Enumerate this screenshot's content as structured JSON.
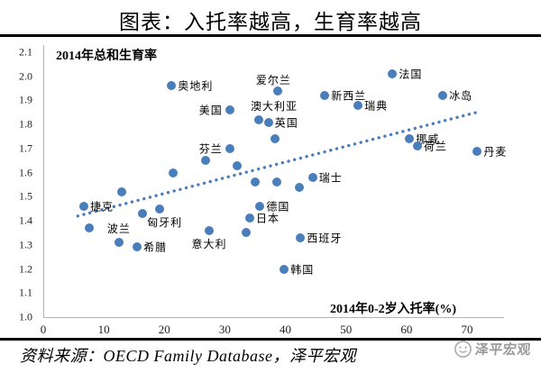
{
  "page_title": "图表：入托率越高，生育率越高",
  "chart_data": {
    "type": "scatter",
    "title": "图表：入托率越高，生育率越高",
    "ylabel": "2014年总和生育率",
    "xlabel": "2014年0-2岁入托率(%)",
    "xlim": [
      0,
      76
    ],
    "ylim": [
      1.0,
      2.1
    ],
    "x_ticks": [
      0,
      10,
      20,
      30,
      40,
      50,
      60,
      70
    ],
    "y_ticks": [
      2.1,
      2.0,
      1.9,
      1.8,
      1.7,
      1.6,
      1.5,
      1.4,
      1.3,
      1.2,
      1.1,
      1.0
    ],
    "grid": false,
    "legend": "none",
    "point_color": "#4A7EBB",
    "points": [
      {
        "label": "捷克",
        "x": 6.7,
        "y": 1.46,
        "label_pos": "right"
      },
      {
        "label": "波兰",
        "x": 12.5,
        "y": 1.31,
        "label_pos": "above"
      },
      {
        "label": "希腊",
        "x": 15.5,
        "y": 1.29,
        "label_pos": "right"
      },
      {
        "label": "匈牙利",
        "x": 16.4,
        "y": 1.43,
        "label_pos": "below-right"
      },
      {
        "label": "奥地利",
        "x": 21.2,
        "y": 1.96,
        "label_pos": "right"
      },
      {
        "label": "美国",
        "x": 30.8,
        "y": 1.86,
        "label_pos": "left"
      },
      {
        "label": "芬兰",
        "x": 30.8,
        "y": 1.7,
        "label_pos": "left"
      },
      {
        "label": "意大利",
        "x": 27.4,
        "y": 1.36,
        "label_pos": "below"
      },
      {
        "label": "日本",
        "x": 34.1,
        "y": 1.41,
        "label_pos": "right"
      },
      {
        "label": "德国",
        "x": 35.8,
        "y": 1.46,
        "label_pos": "right"
      },
      {
        "label": "韩国",
        "x": 39.8,
        "y": 1.2,
        "label_pos": "right"
      },
      {
        "label": "澳大利亚",
        "x": 35.6,
        "y": 1.82,
        "label_pos": "above-right"
      },
      {
        "label": "英国",
        "x": 37.2,
        "y": 1.81,
        "label_pos": "right"
      },
      {
        "label": "爱尔兰",
        "x": 38.7,
        "y": 1.94,
        "label_pos": "above-left"
      },
      {
        "label": "瑞士",
        "x": 44.5,
        "y": 1.58,
        "label_pos": "right"
      },
      {
        "label": "西班牙",
        "x": 42.5,
        "y": 1.33,
        "label_pos": "right"
      },
      {
        "label": "新西兰",
        "x": 46.5,
        "y": 1.92,
        "label_pos": "right"
      },
      {
        "label": "瑞典",
        "x": 52.0,
        "y": 1.88,
        "label_pos": "right"
      },
      {
        "label": "法国",
        "x": 57.7,
        "y": 2.01,
        "label_pos": "right"
      },
      {
        "label": "冰岛",
        "x": 66.0,
        "y": 1.92,
        "label_pos": "right"
      },
      {
        "label": "挪威",
        "x": 60.5,
        "y": 1.74,
        "label_pos": "right"
      },
      {
        "label": "荷兰",
        "x": 61.8,
        "y": 1.71,
        "label_pos": "right"
      },
      {
        "label": "丹麦",
        "x": 71.7,
        "y": 1.69,
        "label_pos": "right"
      }
    ],
    "unlabeled_points": [
      {
        "x": 7.6,
        "y": 1.37
      },
      {
        "x": 13.0,
        "y": 1.52
      },
      {
        "x": 19.2,
        "y": 1.45
      },
      {
        "x": 21.5,
        "y": 1.6
      },
      {
        "x": 26.8,
        "y": 1.65
      },
      {
        "x": 32.0,
        "y": 1.63
      },
      {
        "x": 33.5,
        "y": 1.35
      },
      {
        "x": 35.0,
        "y": 1.56
      },
      {
        "x": 38.3,
        "y": 1.74
      },
      {
        "x": 38.6,
        "y": 1.56
      },
      {
        "x": 42.3,
        "y": 1.54
      }
    ],
    "trendline": {
      "style": "dotted",
      "color": "#4A7EBB",
      "x1": 5.7,
      "y1": 1.42,
      "x2": 71.5,
      "y2": 1.85
    }
  },
  "source_line": "资料来源：OECD Family Database，泽平宏观",
  "watermark": {
    "label": "泽平宏观"
  }
}
